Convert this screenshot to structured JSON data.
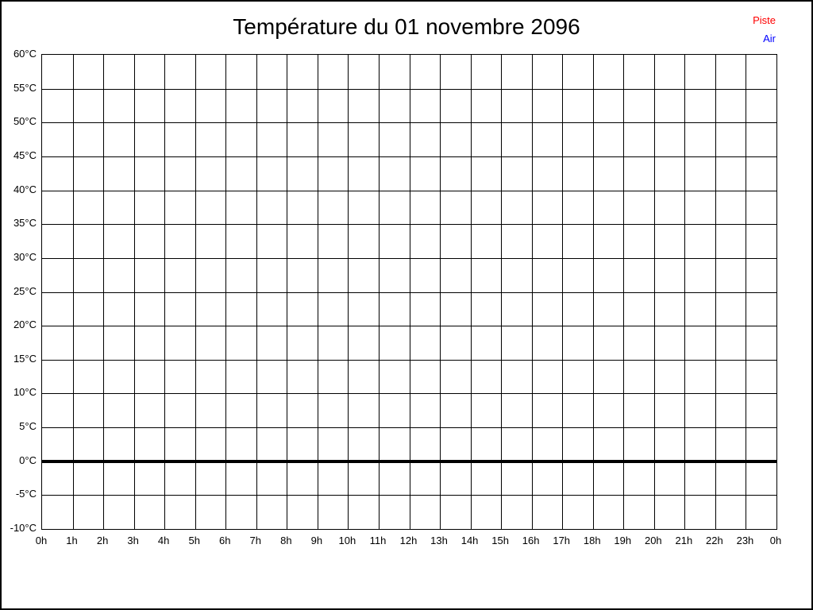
{
  "chart": {
    "title": "Température du 01 novembre 2096"
  },
  "legend": {
    "items": [
      {
        "label": "Piste",
        "color": "#ff0000"
      },
      {
        "label": "Air",
        "color": "#0000ff"
      }
    ]
  },
  "chart_data": {
    "type": "line",
    "title": "Température du 01 novembre 2096",
    "xlabel": "",
    "ylabel": "",
    "x_tick_labels": [
      "0h",
      "1h",
      "2h",
      "3h",
      "4h",
      "5h",
      "6h",
      "7h",
      "8h",
      "9h",
      "10h",
      "11h",
      "12h",
      "13h",
      "14h",
      "15h",
      "16h",
      "17h",
      "18h",
      "19h",
      "20h",
      "21h",
      "22h",
      "23h",
      "0h"
    ],
    "y_tick_labels": [
      "-10°C",
      "-5°C",
      "0°C",
      "5°C",
      "10°C",
      "15°C",
      "20°C",
      "25°C",
      "30°C",
      "35°C",
      "40°C",
      "45°C",
      "50°C",
      "55°C",
      "60°C"
    ],
    "ylim": [
      -10,
      60
    ],
    "ytick_step": 5,
    "grid": true,
    "grid_color": "#000000",
    "zero_line": {
      "value": 0,
      "color": "#000000",
      "width": 4
    },
    "legend_position": "top-right",
    "series": [
      {
        "name": "Piste",
        "color": "#ff0000",
        "values": []
      },
      {
        "name": "Air",
        "color": "#0000ff",
        "values": []
      }
    ]
  }
}
